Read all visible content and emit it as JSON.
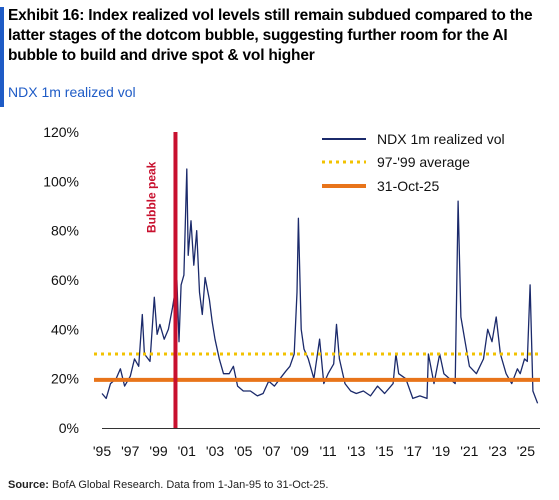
{
  "header": {
    "title": "Exhibit 16: Index realized vol levels still remain subdued compared to the latter stages of the dotcom bubble, suggesting further room for the AI bubble to build and drive spot & vol higher",
    "subtitle": "NDX 1m realized vol"
  },
  "footer": {
    "source_label": "Source:",
    "source_text": " BofA Global Research. Data from 1-Jan-95 to 31-Oct-25."
  },
  "colors": {
    "accent": "#1e5bc6",
    "series_line": "#1b2a6b",
    "average_line": "#f2c200",
    "current_line": "#e8741a",
    "bubble_peak": "#c8102e"
  },
  "chart_data": {
    "type": "line",
    "title": "NDX 1m realized vol",
    "xlabel": "",
    "ylabel": "",
    "xlim": [
      1995,
      2026
    ],
    "ylim": [
      0,
      120
    ],
    "y_ticks": [
      "0%",
      "20%",
      "40%",
      "60%",
      "80%",
      "100%",
      "120%"
    ],
    "x_ticks": [
      "'95",
      "'97",
      "'99",
      "'01",
      "'03",
      "'05",
      "'07",
      "'09",
      "'11",
      "'13",
      "'15",
      "'17",
      "'19",
      "'21",
      "'23",
      "'25"
    ],
    "x_tick_years": [
      1995,
      1997,
      1999,
      2001,
      2003,
      2005,
      2007,
      2009,
      2011,
      2013,
      2015,
      2017,
      2019,
      2021,
      2023,
      2025
    ],
    "grid": false,
    "legend_position": "top-right",
    "series": [
      {
        "name": "NDX 1m realized vol",
        "style": "line",
        "x": [
          1995.0,
          1995.3,
          1995.6,
          1996.0,
          1996.3,
          1996.6,
          1997.0,
          1997.3,
          1997.6,
          1997.85,
          1998.0,
          1998.4,
          1998.7,
          1998.9,
          1999.1,
          1999.4,
          1999.7,
          2000.0,
          2000.3,
          2000.45,
          2000.6,
          2000.8,
          2001.0,
          2001.1,
          2001.3,
          2001.5,
          2001.7,
          2001.9,
          2002.1,
          2002.3,
          2002.6,
          2002.8,
          2003.0,
          2003.3,
          2003.6,
          2004.0,
          2004.3,
          2004.6,
          2005.0,
          2005.5,
          2006.0,
          2006.4,
          2006.8,
          2007.2,
          2007.6,
          2008.0,
          2008.3,
          2008.6,
          2008.8,
          2008.9,
          2009.1,
          2009.3,
          2009.6,
          2010.0,
          2010.4,
          2010.7,
          2011.0,
          2011.4,
          2011.6,
          2011.8,
          2012.2,
          2012.6,
          2013.0,
          2013.5,
          2014.0,
          2014.5,
          2015.0,
          2015.6,
          2015.8,
          2016.0,
          2016.5,
          2017.0,
          2017.5,
          2018.0,
          2018.1,
          2018.5,
          2018.9,
          2019.2,
          2019.6,
          2020.0,
          2020.2,
          2020.4,
          2020.7,
          2021.0,
          2021.5,
          2022.0,
          2022.3,
          2022.6,
          2022.9,
          2023.2,
          2023.6,
          2024.0,
          2024.4,
          2024.6,
          2024.9,
          2025.1,
          2025.3,
          2025.5,
          2025.83
        ],
        "values": [
          14,
          12,
          18,
          20,
          24,
          17,
          21,
          28,
          25,
          46,
          30,
          27,
          53,
          38,
          42,
          36,
          40,
          49,
          60,
          35,
          58,
          62,
          105,
          70,
          84,
          66,
          80,
          55,
          46,
          61,
          52,
          43,
          36,
          28,
          22,
          22,
          25,
          17,
          15,
          15,
          13,
          14,
          19,
          17,
          20,
          23,
          25,
          30,
          55,
          85,
          40,
          32,
          28,
          20,
          36,
          18,
          22,
          26,
          42,
          28,
          18,
          15,
          14,
          15,
          13,
          17,
          14,
          18,
          30,
          22,
          20,
          12,
          13,
          12,
          30,
          18,
          30,
          22,
          20,
          18,
          92,
          45,
          35,
          25,
          22,
          28,
          40,
          35,
          45,
          30,
          22,
          18,
          24,
          22,
          28,
          27,
          58,
          15,
          10
        ]
      },
      {
        "name": "97-'99 average",
        "style": "dotted",
        "value": 30
      },
      {
        "name": "31-Oct-25",
        "style": "solid",
        "value": 19.5
      }
    ],
    "annotations": [
      {
        "label": "Bubble peak",
        "x": 2000.2
      }
    ]
  }
}
